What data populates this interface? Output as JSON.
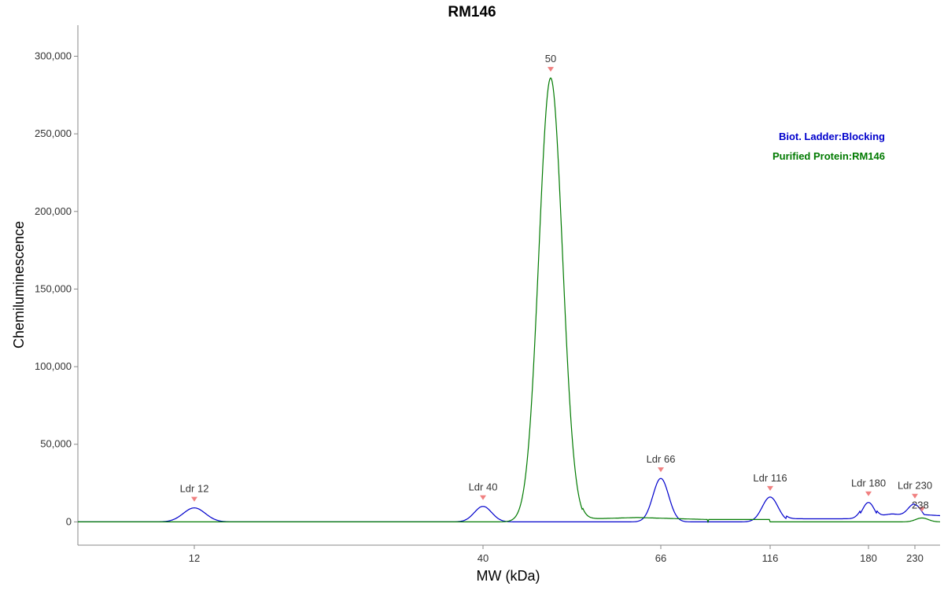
{
  "chart_data": {
    "type": "line",
    "title": "RM146",
    "xlabel": "MW (kDa)",
    "ylabel": "Chemiluminescence",
    "ylim": [
      -15000,
      320000
    ],
    "y_ticks": [
      0,
      50000,
      100000,
      150000,
      200000,
      250000,
      300000
    ],
    "y_tick_labels": [
      "0",
      "50,000",
      "100,000",
      "150,000",
      "200,000",
      "250,000",
      "300,000"
    ],
    "x_ticks": [
      12,
      40,
      66,
      116,
      180,
      230
    ],
    "x_tick_labels": [
      "12",
      "40",
      "66",
      "116",
      "180",
      "230"
    ],
    "x_scale": "ladder-calibrated (non-linear)",
    "grid": false,
    "legend_position": "top-right",
    "series": [
      {
        "name": "Biot. Ladder:Blocking",
        "color": "#0000cc",
        "x": [
          12,
          40,
          66,
          116,
          180,
          230
        ],
        "peak_heights": [
          9000,
          10000,
          28000,
          16000,
          12500,
          11000
        ],
        "baseline_after_230": 5000
      },
      {
        "name": "Purified Protein:RM146",
        "color": "#007a00",
        "x": [
          50,
          238
        ],
        "peak_heights": [
          286000,
          2500
        ]
      }
    ],
    "peak_annotations": [
      {
        "label": "Ldr 12",
        "x": 12,
        "y": 9000
      },
      {
        "label": "Ldr 40",
        "x": 40,
        "y": 10000
      },
      {
        "label": "50",
        "x": 50,
        "y": 286000
      },
      {
        "label": "Ldr 66",
        "x": 66,
        "y": 28000
      },
      {
        "label": "Ldr 116",
        "x": 116,
        "y": 16000
      },
      {
        "label": "Ldr 180",
        "x": 180,
        "y": 12500
      },
      {
        "label": "Ldr 230",
        "x": 230,
        "y": 11000
      },
      {
        "label": "238",
        "x": 238,
        "y": 2500
      }
    ],
    "marker_color": "#f08080"
  }
}
